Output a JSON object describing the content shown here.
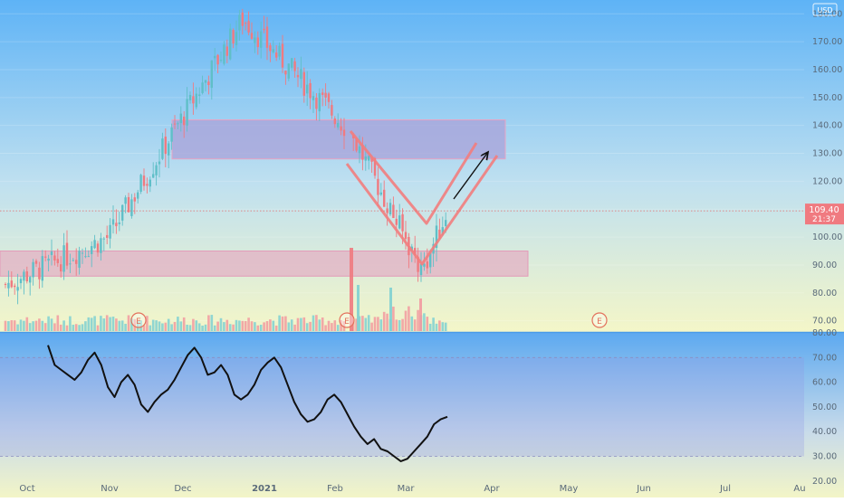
{
  "chart_data": [
    {
      "type": "candlestick",
      "panel": "price",
      "currency": "USD",
      "price_axis": {
        "ticks": [
          70,
          80,
          90,
          100,
          110,
          120,
          130,
          140,
          150,
          160,
          170,
          180
        ],
        "tick_labels": [
          "70.00",
          "80.00",
          "90.00",
          "100.00",
          "110.00",
          "120.00",
          "130.00",
          "140.00",
          "150.00",
          "160.00",
          "170.00",
          "180.00"
        ],
        "range": [
          66,
          183
        ]
      },
      "time_axis": {
        "labels": [
          "Oct",
          "Nov",
          "Dec",
          "2021",
          "Feb",
          "Mar",
          "Apr",
          "May",
          "Jun",
          "Jul",
          "Au"
        ]
      },
      "last_price": {
        "value": 109.4,
        "label": "109.40",
        "countdown": "21:37"
      },
      "key_points": [
        {
          "date": "Oct",
          "close": 83
        },
        {
          "date": "Nov",
          "close": 100
        },
        {
          "date": "Dec-peak",
          "close": 178
        },
        {
          "date": "Feb-start",
          "close": 138
        },
        {
          "date": "Mar-low",
          "close": 88
        },
        {
          "date": "Mar-last",
          "close": 109.4
        }
      ],
      "volume": {
        "present": true,
        "spike_at": "Feb"
      },
      "earnings_markers": [
        "E",
        "E",
        "E"
      ],
      "drawings": [
        {
          "kind": "zone",
          "price_range": [
            128,
            142
          ],
          "color": "#a9a2d8"
        },
        {
          "kind": "zone",
          "price_range": [
            86,
            95
          ],
          "color": "#e2b4c6"
        },
        {
          "kind": "v-pattern",
          "color": "#f27d7d"
        },
        {
          "kind": "arrow",
          "direction": "up",
          "color": "#111111"
        }
      ],
      "colors": {
        "up": "#5fbfc8",
        "down": "#f07a80",
        "background_top": "#62b4f6",
        "background_bottom": "#f3f5c7"
      }
    },
    {
      "type": "line",
      "panel": "oscillator",
      "y_axis": {
        "ticks": [
          20,
          30,
          40,
          50,
          60,
          70,
          80
        ],
        "tick_labels": [
          "20.00",
          "30.00",
          "40.00",
          "50.00",
          "60.00",
          "70.00",
          "80.00"
        ],
        "range": [
          17,
          80
        ],
        "bands": [
          30,
          70
        ]
      },
      "series": [
        {
          "values": [
            75,
            67,
            65,
            63,
            61,
            64,
            69,
            72,
            67,
            58,
            54,
            60,
            63,
            59,
            51,
            48,
            52,
            55,
            57,
            61,
            66,
            71,
            74,
            70,
            63,
            64,
            67,
            63,
            55,
            53,
            55,
            59,
            65,
            68,
            70,
            66,
            59,
            52,
            47,
            44,
            45,
            48,
            53,
            55,
            52,
            47,
            42,
            38,
            35,
            37,
            33,
            32,
            30,
            28,
            29,
            32,
            35,
            38,
            43,
            45,
            46
          ]
        }
      ],
      "colors": {
        "line": "#111111",
        "background_top": "#5da9f0",
        "background_bottom": "#f3f5c7"
      }
    }
  ]
}
